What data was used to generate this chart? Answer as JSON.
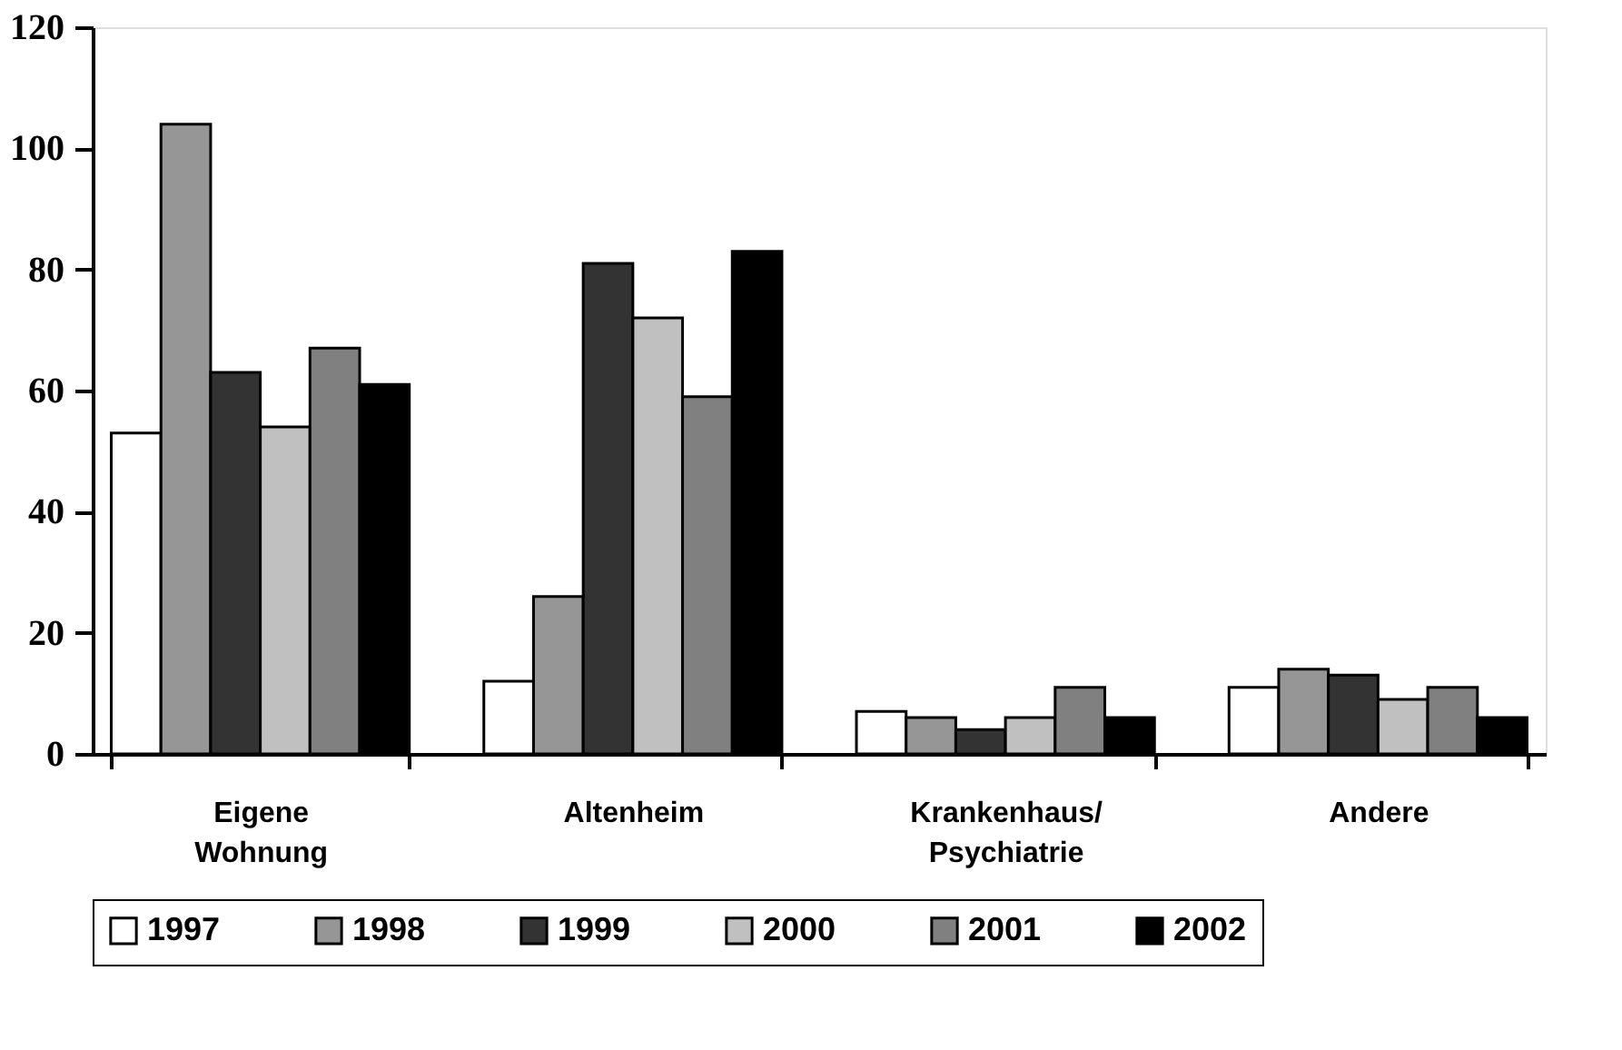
{
  "chart_data": {
    "type": "bar",
    "categories": [
      "Eigene\nWohnung",
      "Altenheim",
      "Krankenhaus/\nPsychiatrie",
      "Andere"
    ],
    "series": [
      {
        "name": "1997",
        "color": "#ffffff",
        "values": [
          53,
          12,
          7,
          11
        ]
      },
      {
        "name": "1998",
        "color": "#969696",
        "values": [
          104,
          26,
          6,
          14
        ]
      },
      {
        "name": "1999",
        "color": "#333333",
        "values": [
          63,
          81,
          4,
          13
        ]
      },
      {
        "name": "2000",
        "color": "#c0c0c0",
        "values": [
          54,
          72,
          6,
          9
        ]
      },
      {
        "name": "2001",
        "color": "#808080",
        "values": [
          67,
          59,
          11,
          11
        ]
      },
      {
        "name": "2002",
        "color": "#000000",
        "values": [
          61,
          83,
          6,
          6
        ]
      }
    ],
    "ylim": [
      0,
      120
    ],
    "yticks": [
      0,
      20,
      40,
      60,
      80,
      100,
      120
    ],
    "grid": false,
    "legend": "bottom"
  }
}
